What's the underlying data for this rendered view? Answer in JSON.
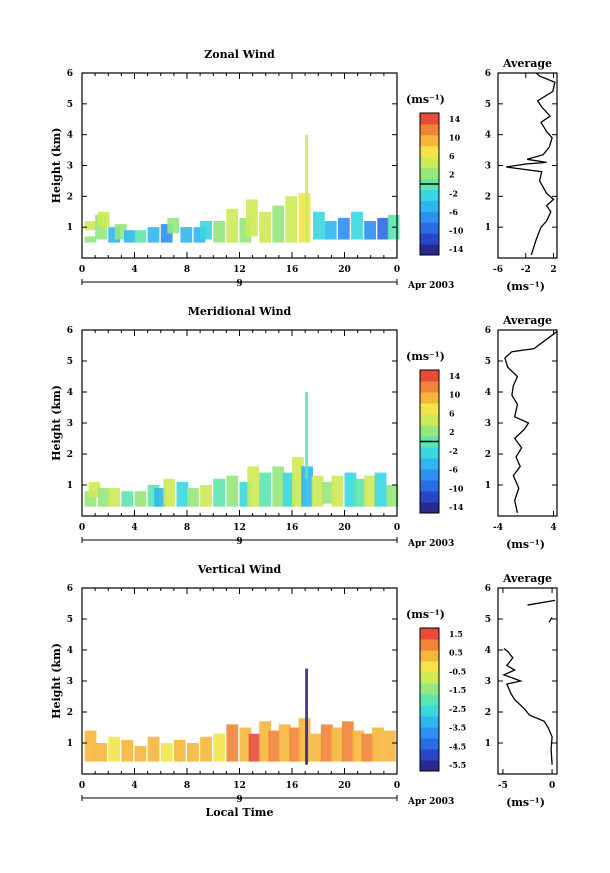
{
  "date_label": "Apr 2003",
  "day_label": "9",
  "x_axis_label": "Local Time",
  "unit_label": "(ms⁻¹)",
  "average_title": "Average",
  "chart_data": [
    {
      "type": "heatmap",
      "title": "Zonal Wind",
      "ylabel": "Height (km)",
      "xlim": [
        0,
        24
      ],
      "ylim": [
        0,
        6
      ],
      "xticks": [
        "0",
        "4",
        "8",
        "12",
        "16",
        "20",
        "0"
      ],
      "yticks": [
        "1",
        "2",
        "3",
        "4",
        "5",
        "6"
      ],
      "colorbar": {
        "ticks": [
          "14",
          "10",
          "6",
          "2",
          "-2",
          "-6",
          "-10",
          "-14"
        ],
        "range": [
          -16,
          16
        ]
      },
      "cells": [
        [
          0.2,
          0.5,
          0.7,
          2
        ],
        [
          0.2,
          0.9,
          1.2,
          4
        ],
        [
          1.0,
          0.6,
          1.4,
          3
        ],
        [
          1.2,
          1.0,
          1.5,
          6
        ],
        [
          2.0,
          0.5,
          1.0,
          -6
        ],
        [
          2.5,
          0.6,
          1.1,
          2
        ],
        [
          3.2,
          0.5,
          0.9,
          -4
        ],
        [
          4.0,
          0.5,
          0.9,
          1
        ],
        [
          5.0,
          0.5,
          1.0,
          -6
        ],
        [
          6.0,
          0.5,
          1.1,
          -8
        ],
        [
          6.5,
          0.8,
          1.3,
          2
        ],
        [
          7.5,
          0.5,
          1.0,
          -4
        ],
        [
          8.5,
          0.5,
          1.0,
          -6
        ],
        [
          9.0,
          0.6,
          1.2,
          -2
        ],
        [
          10.0,
          0.5,
          1.2,
          3
        ],
        [
          11.0,
          0.5,
          1.6,
          5
        ],
        [
          12.0,
          0.5,
          1.3,
          2
        ],
        [
          12.5,
          0.7,
          1.9,
          4
        ],
        [
          13.5,
          0.5,
          1.5,
          6
        ],
        [
          14.5,
          0.5,
          1.7,
          3
        ],
        [
          15.5,
          0.5,
          2.0,
          5
        ],
        [
          16.5,
          0.5,
          2.1,
          7
        ],
        [
          17.0,
          0.5,
          4.0,
          4
        ],
        [
          17.6,
          0.6,
          1.5,
          -3
        ],
        [
          18.5,
          0.6,
          1.2,
          -5
        ],
        [
          19.5,
          0.6,
          1.3,
          -8
        ],
        [
          20.5,
          0.6,
          1.5,
          -2
        ],
        [
          21.5,
          0.6,
          1.2,
          -7
        ],
        [
          22.5,
          0.6,
          1.3,
          -9
        ],
        [
          23.3,
          0.6,
          1.4,
          1
        ]
      ],
      "average": {
        "xlim": [
          -6,
          2.5
        ],
        "xticks": [
          "-6",
          "-2",
          "2"
        ],
        "yticks": [
          "1",
          "2",
          "3",
          "4",
          "5",
          "6"
        ],
        "points": [
          [
            -1.2,
            0.1
          ],
          [
            -0.5,
            0.6
          ],
          [
            0.2,
            1.0
          ],
          [
            1.0,
            1.2
          ],
          [
            1.6,
            1.5
          ],
          [
            1.0,
            1.7
          ],
          [
            2.0,
            1.9
          ],
          [
            1.0,
            2.1
          ],
          [
            0.5,
            2.3
          ],
          [
            0.0,
            2.5
          ],
          [
            0.3,
            2.8
          ],
          [
            -4.8,
            2.95
          ],
          [
            -2.0,
            3.05
          ],
          [
            1.0,
            3.1
          ],
          [
            -1.8,
            3.2
          ],
          [
            0.5,
            3.35
          ],
          [
            1.4,
            3.6
          ],
          [
            1.8,
            3.9
          ],
          [
            1.0,
            4.1
          ],
          [
            0.2,
            4.4
          ],
          [
            1.5,
            4.6
          ],
          [
            0.3,
            4.9
          ],
          [
            -0.3,
            5.1
          ],
          [
            1.9,
            5.4
          ],
          [
            2.2,
            5.7
          ],
          [
            0.0,
            5.9
          ],
          [
            -0.5,
            6.0
          ]
        ]
      }
    },
    {
      "type": "heatmap",
      "title": "Meridional Wind",
      "ylabel": "Height (km)",
      "xlim": [
        0,
        24
      ],
      "ylim": [
        0,
        6
      ],
      "xticks": [
        "0",
        "4",
        "8",
        "12",
        "16",
        "20",
        "0"
      ],
      "yticks": [
        "1",
        "2",
        "3",
        "4",
        "5",
        "6"
      ],
      "colorbar": {
        "ticks": [
          "14",
          "10",
          "6",
          "2",
          "-2",
          "-6",
          "-10",
          "-14"
        ],
        "range": [
          -16,
          16
        ]
      },
      "cells": [
        [
          0.2,
          0.3,
          0.8,
          3
        ],
        [
          0.5,
          0.6,
          1.1,
          5
        ],
        [
          1.2,
          0.3,
          0.9,
          2
        ],
        [
          2.0,
          0.3,
          0.9,
          4
        ],
        [
          3.0,
          0.3,
          0.8,
          1
        ],
        [
          4.0,
          0.3,
          0.8,
          3
        ],
        [
          5.0,
          0.3,
          1.0,
          0
        ],
        [
          5.5,
          0.3,
          0.9,
          -4
        ],
        [
          6.2,
          0.3,
          1.2,
          4
        ],
        [
          7.2,
          0.3,
          1.1,
          -2
        ],
        [
          8.0,
          0.3,
          0.9,
          2
        ],
        [
          9.0,
          0.3,
          1.0,
          5
        ],
        [
          10.0,
          0.3,
          1.2,
          -1
        ],
        [
          11.0,
          0.3,
          1.3,
          3
        ],
        [
          12.0,
          0.3,
          1.1,
          -2
        ],
        [
          12.6,
          0.3,
          1.6,
          4
        ],
        [
          13.5,
          0.3,
          1.4,
          1
        ],
        [
          14.5,
          0.3,
          1.6,
          3
        ],
        [
          15.3,
          0.3,
          1.4,
          -3
        ],
        [
          16.0,
          0.3,
          1.9,
          5
        ],
        [
          16.7,
          0.3,
          1.6,
          -4
        ],
        [
          17.0,
          1.2,
          4.0,
          0
        ],
        [
          17.5,
          0.3,
          1.3,
          4
        ],
        [
          18.3,
          0.4,
          1.1,
          2
        ],
        [
          19.0,
          0.3,
          1.3,
          6
        ],
        [
          20.0,
          0.3,
          1.4,
          -3
        ],
        [
          20.7,
          0.3,
          1.2,
          1
        ],
        [
          21.5,
          0.3,
          1.3,
          4
        ],
        [
          22.3,
          0.3,
          1.4,
          -2
        ],
        [
          23.2,
          0.3,
          1.0,
          3
        ]
      ],
      "average": {
        "xlim": [
          -4,
          4.5
        ],
        "xticks": [
          "-4",
          "4"
        ],
        "yticks": [
          "1",
          "2",
          "3",
          "4",
          "5",
          "6"
        ],
        "points": [
          [
            -1.2,
            0.1
          ],
          [
            -1.6,
            0.5
          ],
          [
            -1.0,
            0.9
          ],
          [
            -1.8,
            1.3
          ],
          [
            -0.8,
            1.6
          ],
          [
            -1.4,
            1.9
          ],
          [
            -0.6,
            2.2
          ],
          [
            -1.6,
            2.5
          ],
          [
            -0.2,
            2.8
          ],
          [
            0.4,
            3.0
          ],
          [
            -1.6,
            3.2
          ],
          [
            -1.2,
            3.6
          ],
          [
            -2.0,
            3.9
          ],
          [
            -1.8,
            4.2
          ],
          [
            -1.2,
            4.5
          ],
          [
            -2.6,
            4.8
          ],
          [
            -3.0,
            5.1
          ],
          [
            -2.0,
            5.3
          ],
          [
            1.2,
            5.4
          ],
          [
            2.4,
            5.6
          ],
          [
            3.6,
            5.8
          ],
          [
            4.5,
            5.95
          ]
        ]
      }
    },
    {
      "type": "heatmap",
      "title": "Vertical Wind",
      "ylabel": "Height (km)",
      "xlabel": "Local Time",
      "xlim": [
        0,
        24
      ],
      "ylim": [
        0,
        6
      ],
      "xticks": [
        "0",
        "4",
        "8",
        "12",
        "16",
        "20",
        "0"
      ],
      "yticks": [
        "1",
        "2",
        "3",
        "4",
        "5",
        "6"
      ],
      "colorbar": {
        "ticks": [
          "1.5",
          "0.5",
          "-0.5",
          "-1.5",
          "-2.5",
          "-3.5",
          "-4.5",
          "-5.5"
        ],
        "range": [
          -6,
          2
        ]
      },
      "cells": [
        [
          0.2,
          0.4,
          1.4,
          0.3
        ],
        [
          1.0,
          0.4,
          1.0,
          0.6
        ],
        [
          2.0,
          0.4,
          1.2,
          -0.3
        ],
        [
          3.0,
          0.4,
          1.1,
          0.4
        ],
        [
          4.0,
          0.4,
          0.9,
          0.2
        ],
        [
          5.0,
          0.4,
          1.2,
          0.5
        ],
        [
          6.0,
          0.4,
          1.0,
          -0.2
        ],
        [
          7.0,
          0.4,
          1.1,
          0.7
        ],
        [
          8.0,
          0.4,
          1.0,
          0.3
        ],
        [
          9.0,
          0.4,
          1.2,
          0.6
        ],
        [
          10.0,
          0.4,
          1.3,
          0.0
        ],
        [
          11.0,
          0.4,
          1.6,
          0.8
        ],
        [
          12.0,
          0.4,
          1.5,
          0.4
        ],
        [
          12.7,
          0.4,
          1.3,
          1.6
        ],
        [
          13.5,
          0.4,
          1.7,
          0.5
        ],
        [
          14.2,
          0.4,
          1.4,
          0.9
        ],
        [
          15.0,
          0.4,
          1.6,
          0.2
        ],
        [
          15.8,
          0.4,
          1.5,
          1.2
        ],
        [
          16.5,
          0.4,
          1.8,
          0.6
        ],
        [
          17.0,
          0.3,
          3.4,
          -5.5
        ],
        [
          17.4,
          0.4,
          1.3,
          0.3
        ],
        [
          18.2,
          0.4,
          1.6,
          0.9
        ],
        [
          19.0,
          0.4,
          1.5,
          0.5
        ],
        [
          19.8,
          0.4,
          1.7,
          1.1
        ],
        [
          20.6,
          0.4,
          1.4,
          0.4
        ],
        [
          21.3,
          0.4,
          1.3,
          0.8
        ],
        [
          22.1,
          0.4,
          1.5,
          0.2
        ],
        [
          23.0,
          0.4,
          1.4,
          0.6
        ]
      ],
      "average": {
        "xlim": [
          -5.5,
          0.5
        ],
        "xticks": [
          "-5",
          "0"
        ],
        "yticks": [
          "1",
          "2",
          "3",
          "4",
          "5",
          "6"
        ],
        "points": [
          [
            0.0,
            0.3
          ],
          [
            -0.1,
            0.8
          ],
          [
            0.0,
            1.2
          ],
          [
            -0.4,
            1.5
          ],
          [
            -0.8,
            1.7
          ],
          [
            -2.3,
            1.9
          ],
          [
            -2.8,
            2.1
          ],
          [
            -3.8,
            2.4
          ],
          [
            -4.2,
            2.6
          ],
          [
            -4.6,
            2.9
          ],
          [
            -3.2,
            3.0
          ],
          [
            -4.9,
            3.2
          ],
          [
            -3.8,
            3.35
          ],
          [
            -4.6,
            3.5
          ],
          [
            -4.0,
            3.75
          ],
          [
            -4.5,
            3.95
          ],
          [
            -4.9,
            4.05
          ]
        ],
        "extra_segments": [
          [
            [
              -2.5,
              5.45
            ],
            [
              0.3,
              5.6
            ]
          ],
          [
            [
              -0.3,
              4.9
            ],
            [
              0.0,
              5.05
            ]
          ]
        ]
      }
    }
  ]
}
